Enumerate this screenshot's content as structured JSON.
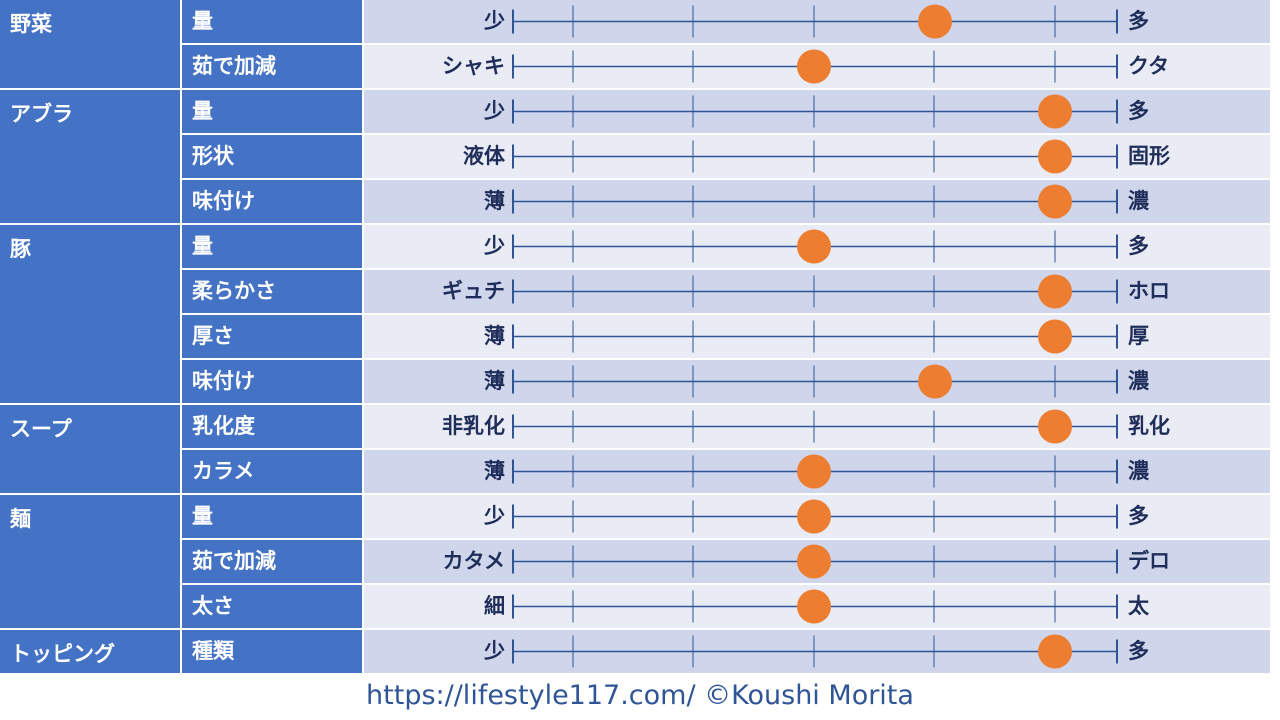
{
  "colors": {
    "category_bg": "#4472c4",
    "row_odd": "#cfd5ea",
    "row_even": "#e9ebf5",
    "scale_line": "#2f5597",
    "dot": "#ed7d31",
    "label_text": "#1f2d5a"
  },
  "chart_data": {
    "type": "scatter",
    "scale_positions": 6,
    "groups": [
      {
        "category": "野菜",
        "rows": [
          {
            "item": "量",
            "left": "少",
            "right": "多",
            "value": 4
          },
          {
            "item": "茹で加減",
            "left": "シャキ",
            "right": "クタ",
            "value": 3
          }
        ]
      },
      {
        "category": "アブラ",
        "rows": [
          {
            "item": "量",
            "left": "少",
            "right": "多",
            "value": 5
          },
          {
            "item": "形状",
            "left": "液体",
            "right": "固形",
            "value": 5
          },
          {
            "item": "味付け",
            "left": "薄",
            "right": "濃",
            "value": 5
          }
        ]
      },
      {
        "category": "豚",
        "rows": [
          {
            "item": "量",
            "left": "少",
            "right": "多",
            "value": 3
          },
          {
            "item": "柔らかさ",
            "left": "ギュチ",
            "right": "ホロ",
            "value": 5
          },
          {
            "item": "厚さ",
            "left": "薄",
            "right": "厚",
            "value": 5
          },
          {
            "item": "味付け",
            "left": "薄",
            "right": "濃",
            "value": 4
          }
        ]
      },
      {
        "category": "スープ",
        "rows": [
          {
            "item": "乳化度",
            "left": "非乳化",
            "right": "乳化",
            "value": 5
          },
          {
            "item": "カラメ",
            "left": "薄",
            "right": "濃",
            "value": 3
          }
        ]
      },
      {
        "category": "麺",
        "rows": [
          {
            "item": "量",
            "left": "少",
            "right": "多",
            "value": 3
          },
          {
            "item": "茹で加減",
            "left": "カタメ",
            "right": "デロ",
            "value": 3
          },
          {
            "item": "太さ",
            "left": "細",
            "right": "太",
            "value": 3
          }
        ]
      },
      {
        "category": "トッピング",
        "rows": [
          {
            "item": "種類",
            "left": "少",
            "right": "多",
            "value": 5
          }
        ]
      }
    ]
  },
  "footer": {
    "text": "https://lifestyle117.com/   ©Koushi Morita"
  }
}
